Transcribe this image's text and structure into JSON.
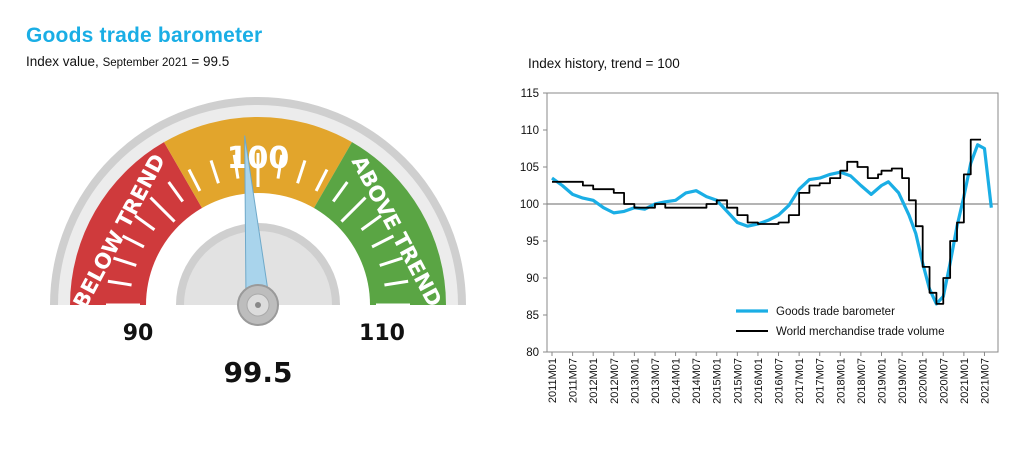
{
  "header": {
    "title": "Goods trade barometer",
    "subtitle_prefix": "Index value,",
    "subtitle_date": "September 2021",
    "subtitle_value": "= 99.5"
  },
  "colors": {
    "title": "#1aaee5",
    "below": "#cf3a3c",
    "trend": "#e2a52c",
    "above": "#5aa544",
    "needle": "#a9d4ec",
    "barometer_line": "#1aaee5",
    "volume_line": "#000000"
  },
  "chart_data": [
    {
      "type": "gauge",
      "value": 99.5,
      "value_label": "99.5",
      "min": 90,
      "max": 110,
      "min_label": "90",
      "max_label": "110",
      "center_label": "100",
      "below_label": "BELOW TREND",
      "above_label": "ABOVE TREND"
    },
    {
      "type": "line",
      "title": "Index history, trend = 100",
      "ylim": [
        80,
        115
      ],
      "yticks": [
        80,
        85,
        90,
        95,
        100,
        105,
        110,
        115
      ],
      "reference_line": 100,
      "grid": false,
      "legend_position": "bottom-right",
      "x_start": "2011M01",
      "x_end": "2021M09",
      "xticks": [
        "2011M01",
        "2011M07",
        "2012M01",
        "2012M07",
        "2013M01",
        "2013M07",
        "2014M01",
        "2014M07",
        "2015M01",
        "2015M07",
        "2016M01",
        "2016M07",
        "2017M01",
        "2017M07",
        "2018M01",
        "2018M07",
        "2019M01",
        "2019M07",
        "2020M01",
        "2020M07",
        "2021M01",
        "2021M07"
      ],
      "series": [
        {
          "name": "Goods trade barometer",
          "color": "#1aaee5",
          "points": [
            [
              "2011M01",
              103.5
            ],
            [
              "2011M04",
              102.5
            ],
            [
              "2011M07",
              101.3
            ],
            [
              "2011M10",
              100.8
            ],
            [
              "2012M01",
              100.5
            ],
            [
              "2012M04",
              99.5
            ],
            [
              "2012M07",
              98.8
            ],
            [
              "2012M10",
              99.0
            ],
            [
              "2013M01",
              99.5
            ],
            [
              "2013M04",
              99.3
            ],
            [
              "2013M07",
              100.0
            ],
            [
              "2013M10",
              100.3
            ],
            [
              "2014M01",
              100.5
            ],
            [
              "2014M04",
              101.5
            ],
            [
              "2014M07",
              101.8
            ],
            [
              "2014M10",
              101.0
            ],
            [
              "2015M01",
              100.5
            ],
            [
              "2015M04",
              99.0
            ],
            [
              "2015M07",
              97.5
            ],
            [
              "2015M10",
              97.0
            ],
            [
              "2016M01",
              97.3
            ],
            [
              "2016M04",
              97.8
            ],
            [
              "2016M07",
              98.5
            ],
            [
              "2016M10",
              99.8
            ],
            [
              "2017M01",
              102.0
            ],
            [
              "2017M04",
              103.3
            ],
            [
              "2017M07",
              103.5
            ],
            [
              "2017M10",
              104.0
            ],
            [
              "2018M01",
              104.3
            ],
            [
              "2018M04",
              103.8
            ],
            [
              "2018M07",
              102.5
            ],
            [
              "2018M10",
              101.3
            ],
            [
              "2019M01",
              102.5
            ],
            [
              "2019M03",
              103.0
            ],
            [
              "2019M06",
              101.5
            ],
            [
              "2019M09",
              98.5
            ],
            [
              "2019M11",
              96.0
            ],
            [
              "2020M01",
              92.0
            ],
            [
              "2020M03",
              88.5
            ],
            [
              "2020M05",
              86.5
            ],
            [
              "2020M07",
              87.5
            ],
            [
              "2020M09",
              92.0
            ],
            [
              "2020M11",
              97.0
            ],
            [
              "2021M01",
              101.0
            ],
            [
              "2021M03",
              105.5
            ],
            [
              "2021M05",
              108.0
            ],
            [
              "2021M07",
              107.5
            ],
            [
              "2021M09",
              99.5
            ]
          ]
        },
        {
          "name": "World merchandise trade volume",
          "color": "#000000",
          "points": [
            [
              "2011M01",
              103.0
            ],
            [
              "2011M07",
              103.0
            ],
            [
              "2011M10",
              102.5
            ],
            [
              "2012M01",
              102.0
            ],
            [
              "2012M07",
              101.5
            ],
            [
              "2012M10",
              100.0
            ],
            [
              "2013M01",
              99.5
            ],
            [
              "2013M07",
              100.0
            ],
            [
              "2013M10",
              99.5
            ],
            [
              "2014M01",
              99.5
            ],
            [
              "2014M07",
              99.5
            ],
            [
              "2014M10",
              100.0
            ],
            [
              "2015M01",
              100.5
            ],
            [
              "2015M04",
              99.5
            ],
            [
              "2015M07",
              98.5
            ],
            [
              "2015M10",
              97.5
            ],
            [
              "2016M01",
              97.3
            ],
            [
              "2016M07",
              97.5
            ],
            [
              "2016M10",
              98.5
            ],
            [
              "2017M01",
              101.5
            ],
            [
              "2017M04",
              102.5
            ],
            [
              "2017M07",
              102.8
            ],
            [
              "2017M10",
              103.5
            ],
            [
              "2018M01",
              104.5
            ],
            [
              "2018M03",
              105.7
            ],
            [
              "2018M06",
              105.0
            ],
            [
              "2018M09",
              103.5
            ],
            [
              "2018M12",
              104.0
            ],
            [
              "2019M01",
              104.5
            ],
            [
              "2019M04",
              104.8
            ],
            [
              "2019M07",
              103.5
            ],
            [
              "2019M09",
              100.5
            ],
            [
              "2019M11",
              97.0
            ],
            [
              "2020M01",
              91.5
            ],
            [
              "2020M03",
              88.0
            ],
            [
              "2020M05",
              86.5
            ],
            [
              "2020M07",
              90.0
            ],
            [
              "2020M09",
              95.0
            ],
            [
              "2020M11",
              97.5
            ],
            [
              "2021M01",
              104.0
            ],
            [
              "2021M03",
              108.7
            ],
            [
              "2021M06",
              108.7
            ]
          ]
        }
      ]
    }
  ]
}
